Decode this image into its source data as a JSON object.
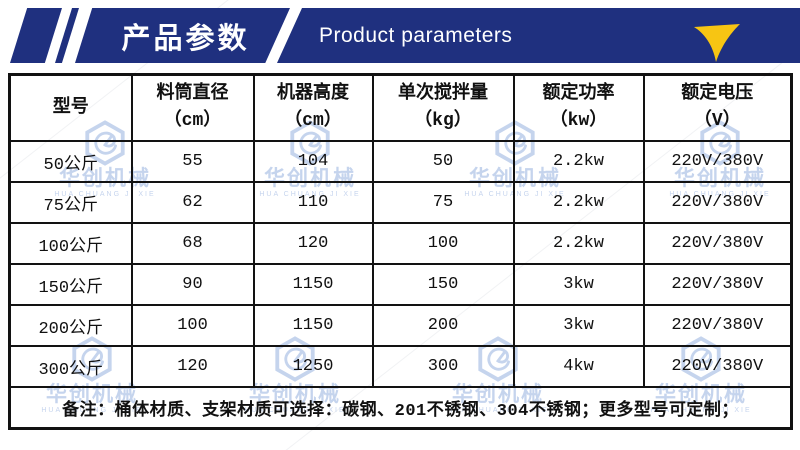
{
  "banner": {
    "title_cn": "产品参数",
    "title_en": "Product parameters"
  },
  "table": {
    "columns": [
      {
        "label": "型号",
        "unit": ""
      },
      {
        "label": "料筒直径",
        "unit": "（cm）"
      },
      {
        "label": "机器高度",
        "unit": "（cm）"
      },
      {
        "label": "单次搅拌量",
        "unit": "（kg）"
      },
      {
        "label": "额定功率",
        "unit": "（kw）"
      },
      {
        "label": "额定电压",
        "unit": "（V）"
      }
    ],
    "rows": [
      [
        "50公斤",
        "55",
        "104",
        "50",
        "2.2kw",
        "220V/380V"
      ],
      [
        "75公斤",
        "62",
        "110",
        "75",
        "2.2kw",
        "220V/380V"
      ],
      [
        "100公斤",
        "68",
        "120",
        "100",
        "2.2kw",
        "220V/380V"
      ],
      [
        "150公斤",
        "90",
        "1150",
        "150",
        "3kw",
        "220V/380V"
      ],
      [
        "200公斤",
        "100",
        "1150",
        "200",
        "3kw",
        "220V/380V"
      ],
      [
        "300公斤",
        "120",
        "1250",
        "300",
        "4kw",
        "220V/380V"
      ]
    ]
  },
  "note": {
    "text": "备注：桶体材质、支架材质可选择：碳钢、201不锈钢、304不锈钢；更多型号可定制；"
  },
  "watermark": {
    "cn": "华创机械",
    "en": "HUA CHUANG JI XIE"
  },
  "colors": {
    "banner_blue": "#1f307f",
    "accent_yellow": "#f7c513",
    "border_black": "#121212",
    "watermark_blue": "#bccdeb"
  }
}
